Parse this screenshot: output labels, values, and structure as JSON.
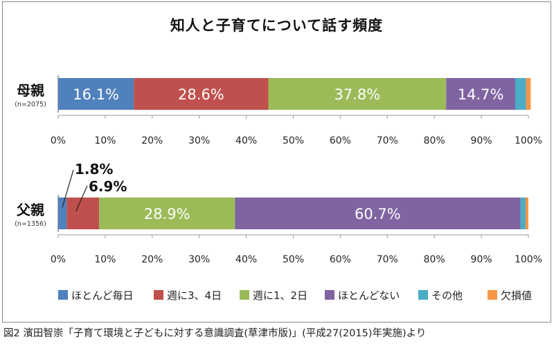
{
  "caption": "図2 濱田智崇「子育て環境と子どもに対する意識調査(草津市版)」(平成27(2015)年実施)より",
  "chart_data": {
    "type": "bar",
    "stacked": true,
    "orientation": "horizontal",
    "title": "知人と子育てについて話す頻度",
    "groups": [
      {
        "name": "母親",
        "n": "(n=2075)"
      },
      {
        "name": "父親",
        "n": "(n=1356)"
      }
    ],
    "xlim": [
      0,
      100
    ],
    "ticks": [
      "0%",
      "10%",
      "20%",
      "30%",
      "40%",
      "50%",
      "60%",
      "70%",
      "80%",
      "90%",
      "100%"
    ],
    "series": [
      {
        "name": "ほとんど毎日",
        "color": "#4f81bd",
        "values": [
          16.1,
          1.8
        ],
        "labels": [
          "16.1%",
          "1.8%"
        ]
      },
      {
        "name": "週に3、4日",
        "color": "#c0504d",
        "values": [
          28.6,
          6.9
        ],
        "labels": [
          "28.6%",
          "6.9%"
        ]
      },
      {
        "name": "週に1、2日",
        "color": "#9bbb59",
        "values": [
          37.8,
          28.9
        ],
        "labels": [
          "37.8%",
          "28.9%"
        ]
      },
      {
        "name": "ほとんどない",
        "color": "#8064a2",
        "values": [
          14.7,
          60.7
        ],
        "labels": [
          "14.7%",
          "60.7%"
        ]
      },
      {
        "name": "その他",
        "color": "#4bacc6",
        "values": [
          2.3,
          1.1
        ],
        "labels": [
          "",
          ""
        ]
      },
      {
        "name": "欠損値",
        "color": "#f79646",
        "values": [
          1.0,
          0.6
        ],
        "labels": [
          "",
          ""
        ]
      }
    ]
  }
}
